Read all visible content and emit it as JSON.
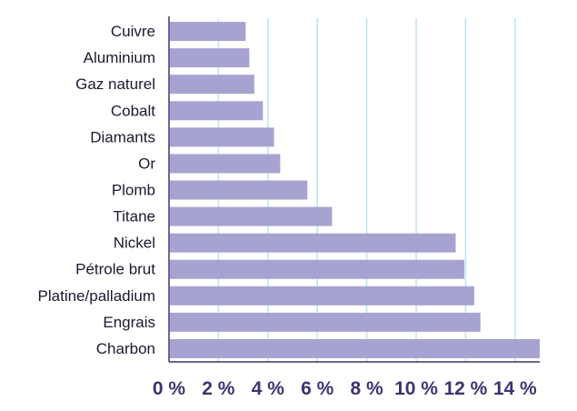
{
  "chart_data": {
    "type": "bar",
    "orientation": "horizontal",
    "title": "",
    "xlabel": "",
    "ylabel": "",
    "categories": [
      "Cuivre",
      "Aluminium",
      "Gaz naturel",
      "Cobalt",
      "Diamants",
      "Or",
      "Plomb",
      "Titane",
      "Nickel",
      "Pétrole brut",
      "Platine/palladium",
      "Engrais",
      "Charbon"
    ],
    "values": [
      3.1,
      3.25,
      3.45,
      3.8,
      4.25,
      4.5,
      5.6,
      6.6,
      11.6,
      11.95,
      12.35,
      12.6,
      15.0
    ],
    "xlim": [
      0,
      15
    ],
    "x_ticks": [
      0,
      2,
      4,
      6,
      8,
      10,
      12,
      14
    ],
    "x_tick_labels": [
      "0 %",
      "2 %",
      "4 %",
      "6 %",
      "8 %",
      "10 %",
      "12 %",
      "14 %"
    ],
    "grid": "vertical",
    "legend": "none",
    "colors": {
      "bar": "#a7a3d1",
      "grid": "#bfe3f2",
      "axis": "#3d3470",
      "tick_text": "#3d3470",
      "label_text": "#1a1a2e"
    }
  }
}
